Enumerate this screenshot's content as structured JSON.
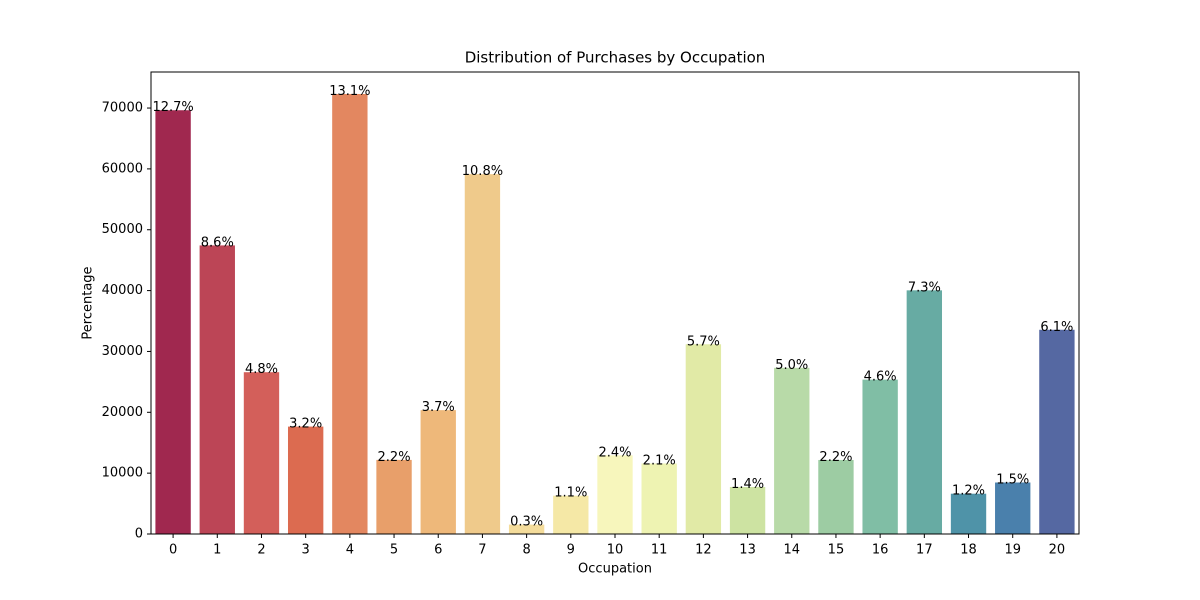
{
  "chart_data": {
    "type": "bar",
    "title": "Distribution of Purchases by Occupation",
    "x_label": "Occupation",
    "y_label": "Percentage",
    "categories": [
      "0",
      "1",
      "2",
      "3",
      "4",
      "5",
      "6",
      "7",
      "8",
      "9",
      "10",
      "11",
      "12",
      "13",
      "14",
      "15",
      "16",
      "17",
      "18",
      "19",
      "20"
    ],
    "values": [
      69638,
      47426,
      26588,
      17650,
      72308,
      12177,
      20355,
      59133,
      1546,
      6291,
      12930,
      11586,
      31179,
      7728,
      27309,
      12165,
      25371,
      40043,
      6622,
      8461,
      33562
    ],
    "value_labels": [
      "12.7%",
      "8.6%",
      "4.8%",
      "3.2%",
      "13.1%",
      "2.2%",
      "3.7%",
      "10.8%",
      "0.3%",
      "1.1%",
      "2.4%",
      "2.1%",
      "5.7%",
      "1.4%",
      "5.0%",
      "2.2%",
      "4.6%",
      "7.3%",
      "1.2%",
      "1.5%",
      "6.1%"
    ],
    "colors": [
      "#a0284f",
      "#bc4556",
      "#d35f5a",
      "#dc6b50",
      "#e38760",
      "#e89f6a",
      "#eeb87a",
      "#efca8b",
      "#f4dc9b",
      "#f5e8a6",
      "#f7f6bc",
      "#eef3b2",
      "#e1eaa6",
      "#cde3a2",
      "#b8daa8",
      "#9dcca3",
      "#80bea5",
      "#67aba3",
      "#4f93a8",
      "#4a80ac",
      "#5568a2"
    ],
    "ylim": [
      0,
      75923
    ],
    "yticks": [
      0,
      10000,
      20000,
      30000,
      40000,
      50000,
      60000,
      70000
    ],
    "grid": false
  }
}
